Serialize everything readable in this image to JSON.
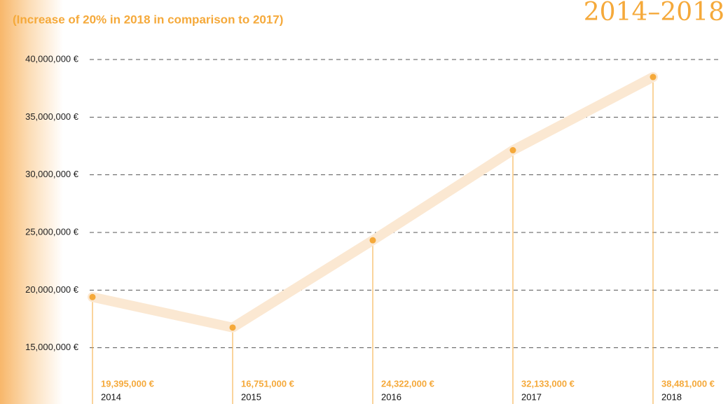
{
  "chart_data": {
    "type": "line",
    "subtitle": "(Increase of 20% in 2018 in comparison to 2017)",
    "period": "2014–2018",
    "categories": [
      "2014",
      "2015",
      "2016",
      "2017",
      "2018"
    ],
    "values": [
      19395000,
      16751000,
      24322000,
      32133000,
      38481000
    ],
    "value_labels": [
      "19,395,000 €",
      "16,751,000 €",
      "24,322,000 €",
      "32,133,000 €",
      "38,481,000 €"
    ],
    "color": "#f5a93a",
    "line_color": "#fbe8d2",
    "ylim": [
      10000000,
      40000000
    ],
    "yticks": [
      {
        "value": 15000000,
        "label": "15,000,000 €"
      },
      {
        "value": 20000000,
        "label": "20,000,000 €"
      },
      {
        "value": 25000000,
        "label": "25,000,000 €"
      },
      {
        "value": 30000000,
        "label": "30,000,000 €"
      },
      {
        "value": 35000000,
        "label": "35,000,000 €"
      },
      {
        "value": 40000000,
        "label": "40,000,000 €"
      }
    ],
    "grid": true
  }
}
